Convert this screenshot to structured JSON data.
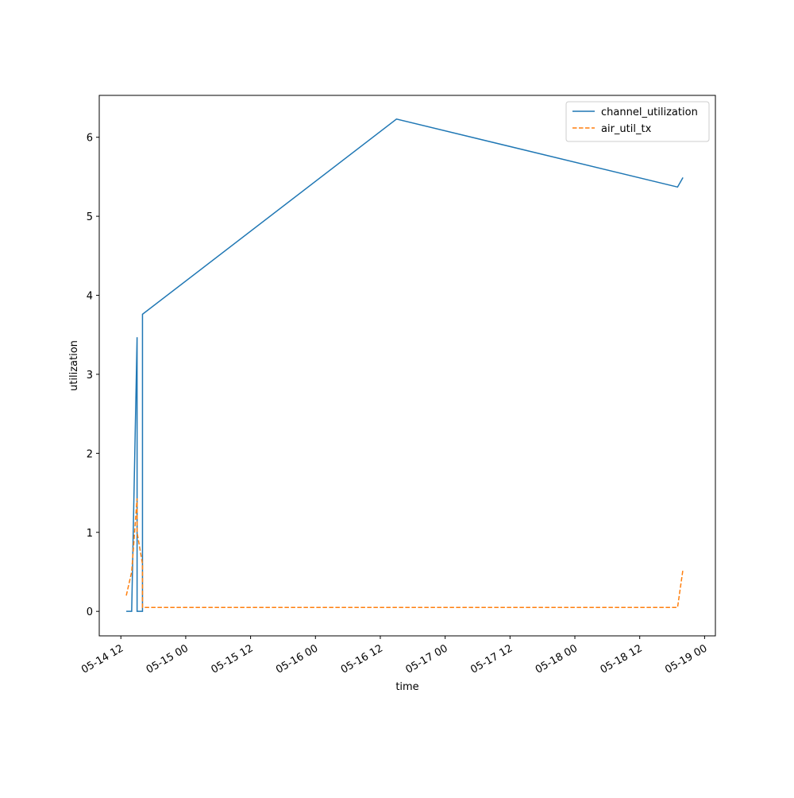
{
  "chart_data": {
    "type": "line",
    "x_label": "time",
    "y_label": "utilization",
    "x": [
      "05-14 13",
      "05-14 14",
      "05-14 15",
      "05-14 15",
      "05-14 16",
      "05-14 16",
      "05-16 15",
      "05-18 19",
      "05-18 20"
    ],
    "series": [
      {
        "name": "channel_utilization",
        "color": "#1f77b4",
        "linestyle": "solid",
        "values": [
          0,
          0,
          3.47,
          0,
          0,
          3.76,
          6.23,
          5.37,
          5.49
        ]
      },
      {
        "name": "air_util_tx",
        "color": "#ff7f0e",
        "linestyle": "dashed",
        "values": [
          0.2,
          0.5,
          1.43,
          1.0,
          0.6,
          0.05,
          0.05,
          0.05,
          0.53
        ]
      }
    ],
    "xlim": [
      "05-14 08",
      "05-19 02"
    ],
    "xticks": [
      "05-14 12",
      "05-15 00",
      "05-15 12",
      "05-16 00",
      "05-16 12",
      "05-17 00",
      "05-17 12",
      "05-18 00",
      "05-18 12",
      "05-19 00"
    ],
    "ylim": [
      -0.31,
      6.53
    ],
    "yticks": [
      0,
      1,
      2,
      3,
      4,
      5,
      6
    ],
    "legend": "upper right",
    "grid": false
  }
}
